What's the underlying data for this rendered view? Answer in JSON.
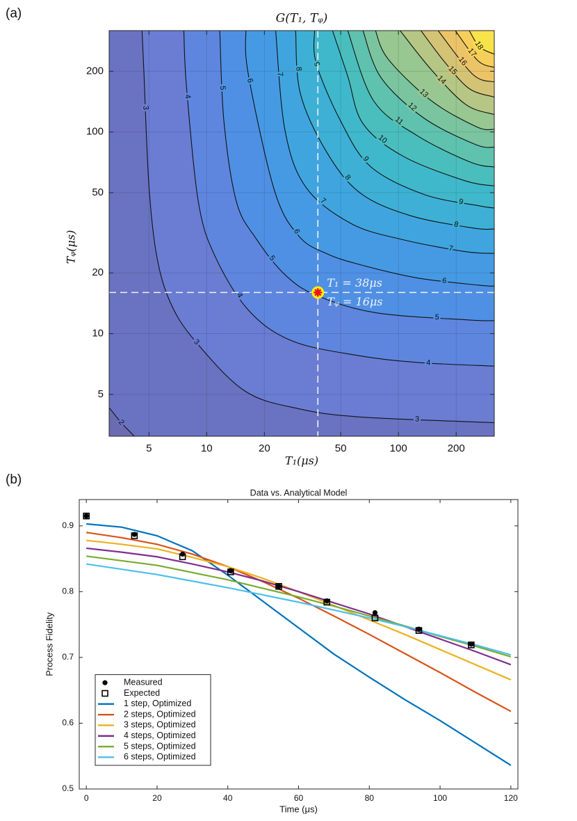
{
  "chart_data": [
    {
      "type": "contour",
      "panel_label": "(a)",
      "title": "G(T₁, Tᵩ)",
      "x_label": "T₁(μs)",
      "y_label": "Tᵩ(μs)",
      "xscale": "log",
      "yscale": "log",
      "xlim": [
        3.1,
        316
      ],
      "ylim": [
        3.1,
        318
      ],
      "xticks": [
        5,
        10,
        20,
        50,
        100,
        200
      ],
      "yticks": [
        5,
        10,
        20,
        50,
        100,
        200
      ],
      "grid": true,
      "base_color": "#6b6cb0",
      "contours": [
        {
          "level": 2,
          "color": "#6a73c2",
          "x": [
            3.1,
            3.6,
            4.2
          ],
          "y": [
            4.3,
            3.6,
            3.1
          ]
        },
        {
          "level": 3,
          "color": "#6a7dd3",
          "x": [
            4.6,
            4.7,
            5.0,
            5.5,
            6.5,
            8.7,
            15.8,
            30,
            64,
            316
          ],
          "y": [
            318,
            204,
            54,
            24,
            14.1,
            9.2,
            5.2,
            4.25,
            3.86,
            3.62
          ]
        },
        {
          "level": 4,
          "color": "#5f86de",
          "x": [
            7.6,
            7.85,
            9.05,
            11.1,
            16.6,
            27.9,
            61,
            125,
            316
          ],
          "y": [
            318,
            167,
            45,
            24,
            13,
            9.2,
            7.8,
            7.2,
            6.9
          ]
        },
        {
          "level": 5,
          "color": "#4f90e4",
          "x": [
            11.7,
            12.3,
            14.3,
            18.1,
            25.6,
            37.3,
            76,
            230,
            316
          ],
          "y": [
            318,
            113,
            45,
            29.6,
            19.6,
            15.5,
            12.7,
            11.7,
            11.6
          ]
        },
        {
          "level": 6,
          "color": "#469ae4",
          "x": [
            16,
            16.5,
            22.6,
            30.3,
            42.4,
            64,
            125,
            261,
            316
          ],
          "y": [
            318,
            192,
            51,
            30.4,
            24.9,
            21.9,
            18.9,
            17.4,
            17.2
          ]
        },
        {
          "level": 7,
          "color": "#40a5df",
          "x": [
            22.9,
            25.6,
            33,
            56.8,
            106,
            224,
            316
          ],
          "y": [
            318,
            102,
            53,
            35.1,
            29.2,
            25.5,
            25
          ]
        },
        {
          "level": 8,
          "color": "#3eb0d6",
          "x": [
            29.1,
            30.8,
            42.4,
            63.2,
            115,
            244,
            316
          ],
          "y": [
            318,
            155,
            79,
            49.8,
            38.5,
            33.4,
            33
          ]
        },
        {
          "level": 9,
          "color": "#40b8cb",
          "x": [
            36.5,
            37.3,
            50,
            71.6,
            136,
            265,
            316
          ],
          "y": [
            318,
            218,
            113,
            67.3,
            49,
            43,
            42
          ]
        },
        {
          "level": 10,
          "color": "#4abebd",
          "x": [
            45.3,
            54.4,
            65.3,
            106,
            221,
            316
          ],
          "y": [
            318,
            189,
            110,
            75.7,
            57.4,
            54
          ]
        },
        {
          "level": 11,
          "color": "#5ec2ae",
          "x": [
            54.4,
            74.1,
            125,
            236,
            316
          ],
          "y": [
            318,
            143,
            96,
            71,
            67
          ]
        },
        {
          "level": 12,
          "color": "#7ac59f",
          "x": [
            65.3,
            81.1,
            136,
            252,
            316
          ],
          "y": [
            318,
            186,
            117,
            86.7,
            84
          ]
        },
        {
          "level": 13,
          "color": "#98c791",
          "x": [
            75.9,
            88.3,
            148,
            256,
            316
          ],
          "y": [
            318,
            230,
            143,
            106,
            103
          ]
        },
        {
          "level": 14,
          "color": "#b6c684",
          "x": [
            102,
            148,
            224,
            316
          ],
          "y": [
            318,
            204,
            137,
            122
          ]
        },
        {
          "level": 15,
          "color": "#d4c375",
          "x": [
            131,
            175,
            234,
            316
          ],
          "y": [
            318,
            221,
            164,
            149
          ]
        },
        {
          "level": 16,
          "color": "#ecc468",
          "x": [
            161,
            244,
            316
          ],
          "y": [
            318,
            193,
            177
          ]
        },
        {
          "level": 17,
          "color": "#f6cf5a",
          "x": [
            198,
            259,
            316
          ],
          "y": [
            318,
            226,
            209
          ]
        },
        {
          "level": 18,
          "color": "#f8e34a",
          "x": [
            234,
            265,
            316
          ],
          "y": [
            318,
            264,
            243
          ]
        }
      ],
      "highlight": {
        "x": 38,
        "y": 16
      },
      "annotations": [
        "T₁ = 38μs",
        "Tᵩ = 16μs"
      ]
    },
    {
      "type": "line",
      "panel_label": "(b)",
      "title": "Data vs. Analytical Model",
      "x_label": "Time (μs)",
      "y_label": "Process Fidelity",
      "xlim": [
        -2,
        122
      ],
      "ylim": [
        0.5,
        0.94
      ],
      "xticks": [
        0,
        20,
        40,
        60,
        80,
        100,
        120
      ],
      "yticks": [
        0.5,
        0.6,
        0.7,
        0.8,
        0.9
      ],
      "grid": false,
      "legend": "lower left",
      "series": [
        {
          "name": "Measured",
          "marker": "circle",
          "color": "#000000",
          "x": [
            0,
            13.6,
            27.2,
            40.8,
            54.4,
            68,
            81.6,
            94,
            108.8
          ],
          "values": [
            0.915,
            0.887,
            0.857,
            0.832,
            0.808,
            0.786,
            0.768,
            0.743,
            0.72
          ]
        },
        {
          "name": "Expected",
          "marker": "square",
          "color": "#000000",
          "x": [
            0,
            13.6,
            27.2,
            40.8,
            54.4,
            68,
            81.6,
            94,
            108.8
          ],
          "values": [
            0.915,
            0.885,
            0.853,
            0.83,
            0.808,
            0.784,
            0.76,
            0.741,
            0.719
          ]
        },
        {
          "name": "1 step, Optimized",
          "color": "#0072bd",
          "x": [
            0,
            10,
            20,
            30,
            40,
            50,
            60,
            70,
            80,
            90,
            100,
            110,
            120
          ],
          "values": [
            0.903,
            0.898,
            0.885,
            0.862,
            0.825,
            0.785,
            0.745,
            0.705,
            0.67,
            0.636,
            0.604,
            0.57,
            0.536
          ]
        },
        {
          "name": "2 steps, Optimized",
          "color": "#d95319",
          "x": [
            0,
            10,
            20,
            30,
            40,
            50,
            60,
            70,
            80,
            90,
            100,
            110,
            120
          ],
          "values": [
            0.89,
            0.882,
            0.872,
            0.857,
            0.838,
            0.815,
            0.79,
            0.763,
            0.735,
            0.706,
            0.677,
            0.647,
            0.618
          ]
        },
        {
          "name": "3 steps, Optimized",
          "color": "#edb120",
          "x": [
            0,
            10,
            20,
            30,
            40,
            50,
            60,
            70,
            80,
            90,
            100,
            110,
            120
          ],
          "values": [
            0.878,
            0.872,
            0.865,
            0.852,
            0.838,
            0.82,
            0.8,
            0.779,
            0.757,
            0.735,
            0.712,
            0.689,
            0.666
          ]
        },
        {
          "name": "4 steps, Optimized",
          "color": "#7e2f8e",
          "x": [
            0,
            10,
            20,
            30,
            40,
            50,
            60,
            70,
            80,
            90,
            100,
            110,
            120
          ],
          "values": [
            0.866,
            0.86,
            0.853,
            0.842,
            0.83,
            0.816,
            0.8,
            0.783,
            0.766,
            0.747,
            0.728,
            0.709,
            0.689
          ]
        },
        {
          "name": "5 steps, Optimized",
          "color": "#77ac30",
          "x": [
            0,
            10,
            20,
            30,
            40,
            50,
            60,
            70,
            80,
            90,
            100,
            110,
            120
          ],
          "values": [
            0.854,
            0.847,
            0.84,
            0.829,
            0.818,
            0.805,
            0.792,
            0.778,
            0.763,
            0.748,
            0.732,
            0.717,
            0.701
          ]
        },
        {
          "name": "6 steps, Optimized",
          "color": "#4dbeee",
          "x": [
            0,
            10,
            20,
            30,
            40,
            50,
            60,
            70,
            80,
            90,
            100,
            110,
            120
          ],
          "values": [
            0.842,
            0.834,
            0.826,
            0.816,
            0.806,
            0.795,
            0.784,
            0.772,
            0.76,
            0.747,
            0.733,
            0.719,
            0.704
          ]
        }
      ]
    }
  ]
}
